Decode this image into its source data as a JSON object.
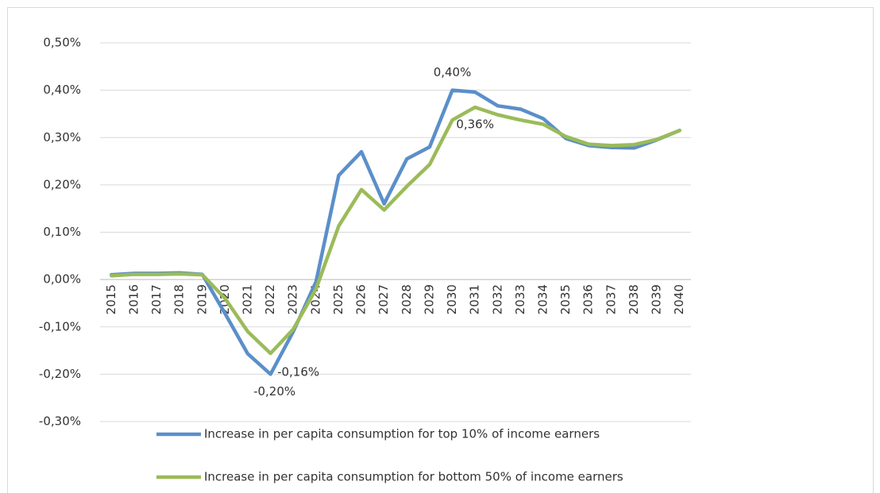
{
  "chart_data": {
    "type": "line",
    "categories": [
      "2015",
      "2016",
      "2017",
      "2018",
      "2019",
      "2020",
      "2021",
      "2022",
      "2023",
      "2024",
      "2025",
      "2026",
      "2027",
      "2028",
      "2029",
      "2030",
      "2031",
      "2032",
      "2033",
      "2034",
      "2035",
      "2036",
      "2037",
      "2038",
      "2039",
      "2040"
    ],
    "series": [
      {
        "name": "Increase in per capita consumption for top 10% of income earners",
        "color": "#5b8fc9",
        "values": [
          0.01,
          0.013,
          0.013,
          0.014,
          0.011,
          -0.072,
          -0.157,
          -0.2,
          -0.11,
          -0.005,
          0.22,
          0.27,
          0.16,
          0.255,
          0.28,
          0.4,
          0.396,
          0.367,
          0.36,
          0.34,
          0.298,
          0.283,
          0.279,
          0.278,
          0.295,
          0.315
        ],
        "value_labels": [
          null,
          null,
          null,
          null,
          null,
          null,
          null,
          "-0,20%",
          null,
          null,
          null,
          null,
          null,
          null,
          null,
          "0,40%",
          null,
          null,
          null,
          null,
          null,
          null,
          null,
          null,
          null,
          null
        ]
      },
      {
        "name": "Increase in per capita consumption for bottom 50% of income earners",
        "color": "#9bbb59",
        "values": [
          0.008,
          0.011,
          0.011,
          0.012,
          0.01,
          -0.04,
          -0.11,
          -0.156,
          -0.105,
          -0.02,
          0.113,
          0.19,
          0.147,
          0.197,
          0.243,
          0.337,
          0.364,
          0.348,
          0.337,
          0.328,
          0.302,
          0.286,
          0.283,
          0.285,
          0.296,
          0.315
        ],
        "value_labels": [
          null,
          null,
          null,
          null,
          null,
          null,
          null,
          "-0,16%",
          null,
          null,
          null,
          null,
          null,
          null,
          null,
          null,
          "0,36%",
          null,
          null,
          null,
          null,
          null,
          null,
          null,
          null,
          null
        ]
      }
    ],
    "ylim": [
      -0.3,
      0.5
    ],
    "yticks": [
      {
        "value": -0.3,
        "label": "-0,30%"
      },
      {
        "value": -0.2,
        "label": "-0,20%"
      },
      {
        "value": -0.1,
        "label": "-0,10%"
      },
      {
        "value": 0,
        "label": "0,00%"
      },
      {
        "value": 0.1,
        "label": "0,10%"
      },
      {
        "value": 0.2,
        "label": "0,20%"
      },
      {
        "value": 0.3,
        "label": "0,30%"
      },
      {
        "value": 0.4,
        "label": "0,40%"
      },
      {
        "value": 0.5,
        "label": "0,50%"
      }
    ],
    "grid": true,
    "legend": "bottom"
  }
}
